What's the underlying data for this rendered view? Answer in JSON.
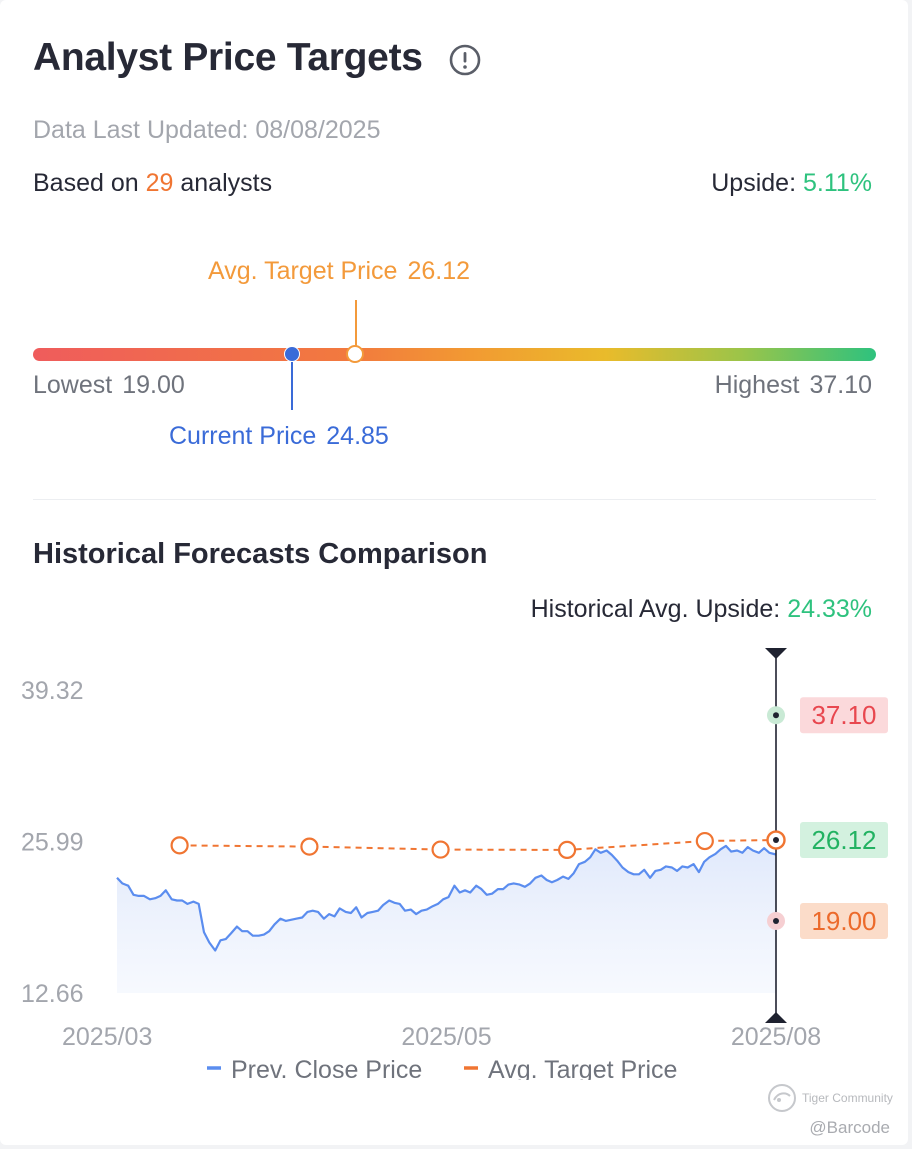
{
  "header": {
    "title": "Analyst Price Targets",
    "updated": "Data Last Updated: 08/08/2025",
    "based_prefix": "Based on",
    "analyst_count": "29",
    "based_suffix": "analysts",
    "upside_label": "Upside:",
    "upside_value": "5.11%"
  },
  "gauge": {
    "avg_label": "Avg. Target Price",
    "avg_value": "26.12",
    "low_label": "Lowest",
    "low_value": "19.00",
    "high_label": "Highest",
    "high_value": "37.10",
    "current_label": "Current Price",
    "current_value": "24.85",
    "low": 19.0,
    "high": 37.1,
    "avg": 26.12,
    "current": 24.85
  },
  "history": {
    "title": "Historical Forecasts Comparison",
    "upside_label": "Historical Avg. Upside:",
    "upside_value": "24.33%"
  },
  "chart_data": {
    "type": "line",
    "ylim": [
      12.66,
      39.32
    ],
    "y_ticks": [
      "39.32",
      "25.99",
      "12.66"
    ],
    "x_ticks": [
      {
        "label": "2025/03",
        "x": 0
      },
      {
        "label": "2025/05",
        "x": 0.5
      },
      {
        "label": "2025/08",
        "x": 1
      }
    ],
    "series": [
      {
        "name": "Prev. Close Price",
        "color": "#5b8def",
        "points": [
          [
            0.0,
            22.8
          ],
          [
            0.008,
            22.3
          ],
          [
            0.017,
            22.1
          ],
          [
            0.025,
            21.3
          ],
          [
            0.033,
            21.2
          ],
          [
            0.041,
            21.2
          ],
          [
            0.05,
            20.9
          ],
          [
            0.058,
            21.0
          ],
          [
            0.066,
            21.2
          ],
          [
            0.074,
            21.7
          ],
          [
            0.083,
            20.9
          ],
          [
            0.091,
            20.8
          ],
          [
            0.099,
            20.8
          ],
          [
            0.107,
            20.5
          ],
          [
            0.116,
            20.7
          ],
          [
            0.124,
            20.5
          ],
          [
            0.132,
            18.0
          ],
          [
            0.14,
            17.1
          ],
          [
            0.149,
            16.4
          ],
          [
            0.157,
            17.3
          ],
          [
            0.165,
            17.4
          ],
          [
            0.173,
            17.9
          ],
          [
            0.182,
            18.5
          ],
          [
            0.19,
            18.1
          ],
          [
            0.198,
            18.1
          ],
          [
            0.206,
            17.7
          ],
          [
            0.215,
            17.7
          ],
          [
            0.223,
            17.8
          ],
          [
            0.231,
            18.1
          ],
          [
            0.239,
            18.7
          ],
          [
            0.248,
            19.2
          ],
          [
            0.256,
            19.0
          ],
          [
            0.264,
            19.1
          ],
          [
            0.272,
            19.2
          ],
          [
            0.281,
            19.3
          ],
          [
            0.289,
            19.8
          ],
          [
            0.297,
            19.9
          ],
          [
            0.305,
            19.8
          ],
          [
            0.314,
            19.2
          ],
          [
            0.322,
            19.6
          ],
          [
            0.33,
            19.4
          ],
          [
            0.338,
            20.1
          ],
          [
            0.347,
            19.8
          ],
          [
            0.355,
            19.7
          ],
          [
            0.363,
            20.2
          ],
          [
            0.371,
            19.3
          ],
          [
            0.38,
            19.7
          ],
          [
            0.388,
            19.8
          ],
          [
            0.396,
            19.9
          ],
          [
            0.404,
            20.4
          ],
          [
            0.413,
            20.8
          ],
          [
            0.421,
            20.6
          ],
          [
            0.429,
            20.5
          ],
          [
            0.437,
            19.9
          ],
          [
            0.446,
            20.0
          ],
          [
            0.454,
            19.6
          ],
          [
            0.462,
            19.9
          ],
          [
            0.47,
            20.0
          ],
          [
            0.479,
            20.3
          ],
          [
            0.487,
            20.5
          ],
          [
            0.495,
            20.9
          ],
          [
            0.503,
            21.1
          ],
          [
            0.512,
            22.1
          ],
          [
            0.52,
            21.5
          ],
          [
            0.528,
            21.7
          ],
          [
            0.536,
            21.5
          ],
          [
            0.545,
            22.1
          ],
          [
            0.553,
            21.8
          ],
          [
            0.561,
            21.3
          ],
          [
            0.569,
            21.4
          ],
          [
            0.578,
            21.8
          ],
          [
            0.586,
            21.8
          ],
          [
            0.594,
            22.2
          ],
          [
            0.602,
            22.3
          ],
          [
            0.611,
            22.2
          ],
          [
            0.619,
            22.0
          ],
          [
            0.627,
            22.3
          ],
          [
            0.635,
            22.8
          ],
          [
            0.644,
            23.0
          ],
          [
            0.652,
            22.6
          ],
          [
            0.66,
            22.4
          ],
          [
            0.668,
            22.6
          ],
          [
            0.677,
            22.9
          ],
          [
            0.685,
            22.7
          ],
          [
            0.693,
            23.2
          ],
          [
            0.701,
            24.0
          ],
          [
            0.71,
            24.2
          ],
          [
            0.718,
            24.6
          ],
          [
            0.726,
            25.3
          ],
          [
            0.734,
            25.0
          ],
          [
            0.743,
            25.2
          ],
          [
            0.751,
            24.8
          ],
          [
            0.759,
            24.3
          ],
          [
            0.767,
            23.7
          ],
          [
            0.776,
            23.3
          ],
          [
            0.784,
            23.1
          ],
          [
            0.792,
            23.1
          ],
          [
            0.8,
            23.5
          ],
          [
            0.809,
            22.8
          ],
          [
            0.817,
            23.4
          ],
          [
            0.825,
            23.5
          ],
          [
            0.833,
            23.8
          ],
          [
            0.842,
            23.7
          ],
          [
            0.85,
            23.4
          ],
          [
            0.858,
            23.8
          ],
          [
            0.866,
            23.7
          ],
          [
            0.875,
            24.0
          ],
          [
            0.883,
            23.3
          ],
          [
            0.891,
            24.2
          ],
          [
            0.899,
            24.6
          ],
          [
            0.908,
            24.9
          ],
          [
            0.916,
            25.3
          ],
          [
            0.924,
            25.6
          ],
          [
            0.932,
            25.1
          ],
          [
            0.941,
            25.2
          ],
          [
            0.949,
            25.0
          ],
          [
            0.957,
            25.5
          ],
          [
            0.965,
            25.2
          ],
          [
            0.974,
            25.0
          ],
          [
            0.982,
            25.4
          ],
          [
            0.99,
            25.0
          ],
          [
            1.0,
            24.85
          ]
        ]
      },
      {
        "name": "Avg. Target Price",
        "color": "#f07532",
        "points": [
          [
            0.095,
            25.65
          ],
          [
            0.292,
            25.54
          ],
          [
            0.491,
            25.28
          ],
          [
            0.683,
            25.25
          ],
          [
            0.892,
            26.03
          ],
          [
            1.0,
            26.12
          ]
        ]
      }
    ],
    "markers": [
      {
        "value": 37.1,
        "label": "37.10",
        "text_color": "#e8474f",
        "bg": "#fbd9db",
        "dot_bg": "#c9ead5"
      },
      {
        "value": 26.12,
        "label": "26.12",
        "text_color": "#22b262",
        "bg": "#d3f1df",
        "dot_bg": "#f07532"
      },
      {
        "value": 19.0,
        "label": "19.00",
        "text_color": "#ec6a2b",
        "bg": "#fbdcc9",
        "dot_bg": "#f6cfd2"
      }
    ]
  },
  "watermark": {
    "brand": "Tiger Community",
    "handle": "@Barcode"
  }
}
